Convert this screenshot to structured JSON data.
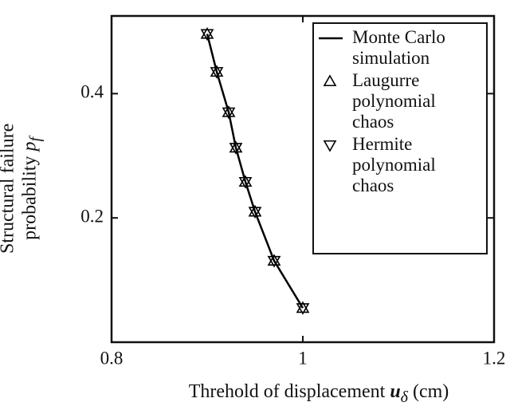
{
  "chart_data": {
    "type": "line",
    "xlabel": {
      "text": "Threhold of displacement",
      "symbol": "u",
      "subscript": "δ",
      "unit": "(cm)"
    },
    "ylabel": {
      "text": "Structural failure probability",
      "symbol": "p",
      "subscript": "f"
    },
    "x": [
      0.9,
      0.91,
      0.9225,
      0.93,
      0.94,
      0.95,
      0.97,
      1.0
    ],
    "series": [
      {
        "name": "Monte Carlo simulation",
        "color": "#000000",
        "marker": "line",
        "values": [
          0.496,
          0.435,
          0.37,
          0.313,
          0.258,
          0.21,
          0.131,
          0.055
        ]
      },
      {
        "name": "Laugurre polynomial chaos",
        "color": "#000000",
        "marker": "triangle-up",
        "values": [
          0.496,
          0.435,
          0.37,
          0.313,
          0.258,
          0.21,
          0.131,
          0.055
        ]
      },
      {
        "name": "Hermite polynomial chaos",
        "color": "#000000",
        "marker": "triangle-down",
        "values": [
          0.496,
          0.435,
          0.37,
          0.313,
          0.258,
          0.21,
          0.131,
          0.055
        ]
      }
    ],
    "xlim": [
      0.8,
      1.2
    ],
    "xticks": [
      0.8,
      1,
      1.2
    ],
    "ylim": [
      0,
      0.525
    ],
    "yticks": [
      0.2,
      0.4
    ],
    "legend": "upper right"
  }
}
